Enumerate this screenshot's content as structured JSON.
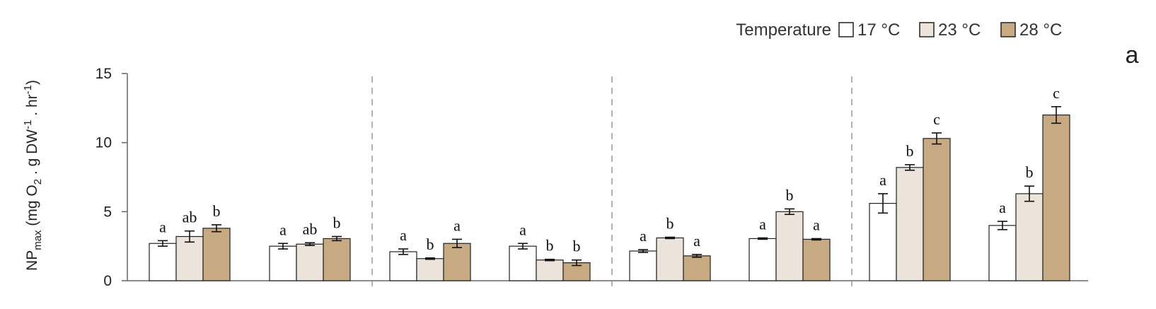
{
  "panel_label": "a",
  "legend": {
    "title": "Temperature",
    "items": [
      {
        "label": "17 °C",
        "color": "#ffffff"
      },
      {
        "label": "23 °C",
        "color": "#ece3da"
      },
      {
        "label": "28 °C",
        "color": "#c8aa82"
      }
    ]
  },
  "chart_data": {
    "type": "bar",
    "ylabel": {
      "main": "NP",
      "sub": "max",
      "rest": " (mg O",
      "sub2": "2",
      "rest2": " . g DW",
      "sup": "-1",
      "rest3": " . hr",
      "sup2": "-1",
      "rest4": ")"
    },
    "ylim": [
      0,
      15
    ],
    "yticks": [
      0,
      5,
      10,
      15
    ],
    "grid": false,
    "legend_position": "top-right",
    "series": [
      {
        "name": "17 °C",
        "color": "#ffffff"
      },
      {
        "name": "23 °C",
        "color": "#ece3da"
      },
      {
        "name": "28 °C",
        "color": "#c8aa82"
      }
    ],
    "groups": [
      {
        "values": [
          2.7,
          3.2,
          3.8
        ],
        "errors": [
          0.2,
          0.4,
          0.25
        ],
        "letters": [
          "a",
          "ab",
          "b"
        ]
      },
      {
        "values": [
          2.5,
          2.65,
          3.05
        ],
        "errors": [
          0.2,
          0.1,
          0.15
        ],
        "letters": [
          "a",
          "ab",
          "b"
        ]
      },
      {
        "values": [
          2.1,
          1.6,
          2.7
        ],
        "errors": [
          0.2,
          0.05,
          0.3
        ],
        "letters": [
          "a",
          "b",
          "a"
        ]
      },
      {
        "values": [
          2.5,
          1.5,
          1.3
        ],
        "errors": [
          0.2,
          0.05,
          0.2
        ],
        "letters": [
          "a",
          "b",
          "b"
        ]
      },
      {
        "values": [
          2.15,
          3.1,
          1.8
        ],
        "errors": [
          0.1,
          0.05,
          0.1
        ],
        "letters": [
          "a",
          "b",
          "a"
        ]
      },
      {
        "values": [
          3.05,
          5.0,
          3.0
        ],
        "errors": [
          0.05,
          0.2,
          0.05
        ],
        "letters": [
          "a",
          "b",
          "a"
        ]
      },
      {
        "values": [
          5.6,
          8.2,
          10.3
        ],
        "errors": [
          0.7,
          0.2,
          0.4
        ],
        "letters": [
          "a",
          "b",
          "c"
        ]
      },
      {
        "values": [
          4.0,
          6.3,
          12.0
        ],
        "errors": [
          0.3,
          0.55,
          0.6
        ],
        "letters": [
          "a",
          "b",
          "c"
        ]
      }
    ],
    "separators_after_groups": [
      2,
      4,
      6
    ]
  }
}
